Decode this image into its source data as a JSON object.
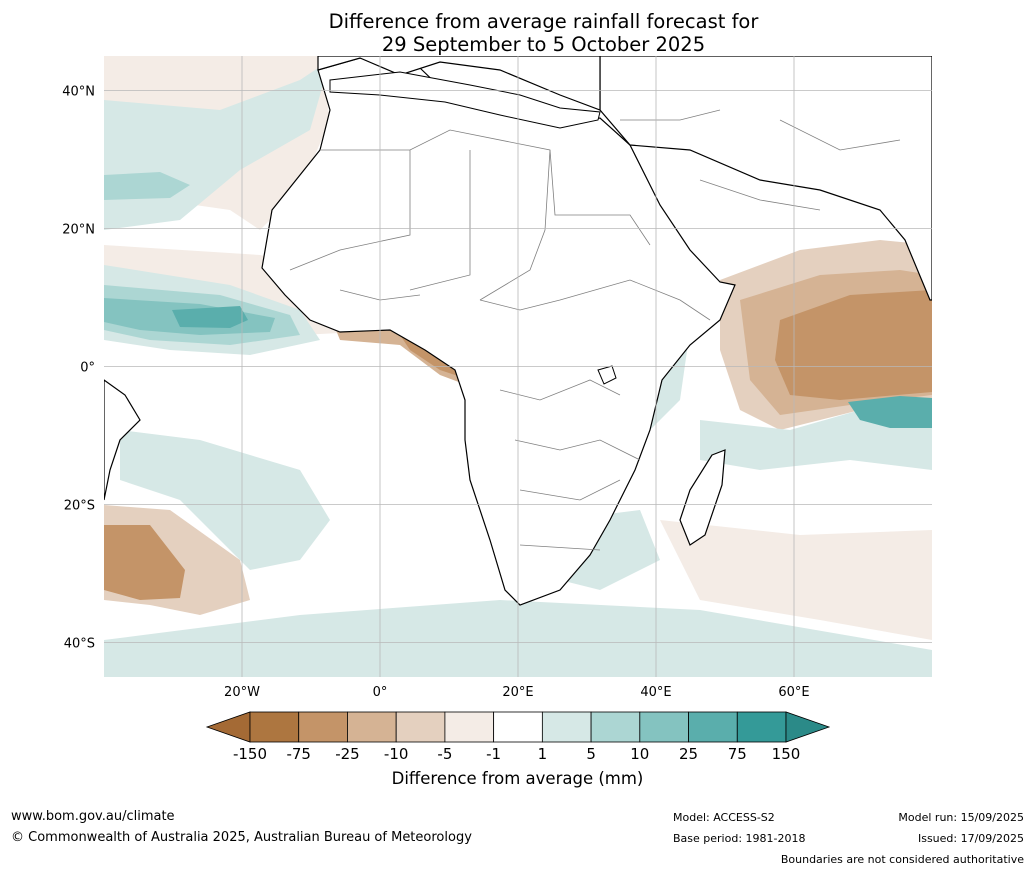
{
  "title_line1": "Difference from average rainfall forecast for",
  "title_line2": "29 September to 5 October 2025",
  "map": {
    "lon_range": [
      -40,
      80
    ],
    "lat_range": [
      -45,
      45
    ],
    "lon_ticks": [
      {
        "value": -20,
        "label": "20°W"
      },
      {
        "value": 0,
        "label": "0°"
      },
      {
        "value": 20,
        "label": "20°E"
      },
      {
        "value": 40,
        "label": "40°E"
      },
      {
        "value": 60,
        "label": "60°E"
      }
    ],
    "lat_ticks": [
      {
        "value": 40,
        "label": "40°N"
      },
      {
        "value": 20,
        "label": "20°N"
      },
      {
        "value": 0,
        "label": "0°"
      },
      {
        "value": -20,
        "label": "20°S"
      },
      {
        "value": -40,
        "label": "40°S"
      }
    ],
    "grid": true
  },
  "colorbar": {
    "title": "Difference from average (mm)",
    "tick_labels": [
      "-150",
      "-75",
      "-25",
      "-10",
      "-5",
      "-1",
      "1",
      "5",
      "10",
      "25",
      "75",
      "150"
    ],
    "colors": [
      "#a46a35",
      "#ad7640",
      "#c49468",
      "#d5b394",
      "#e4d0bf",
      "#f4ece6",
      "#ffffff",
      "#d6e8e6",
      "#acd6d3",
      "#84c3c0",
      "#5aaeac",
      "#349a98",
      "#2b8a88"
    ]
  },
  "footer": {
    "website": "www.bom.gov.au/climate",
    "copyright": "© Commonwealth of Australia 2025, Australian Bureau of Meteorology",
    "model": "Model: ACCESS-S2",
    "base_period": "Base period: 1981-2018",
    "model_run": "Model run: 15/09/2025",
    "issued": "Issued: 17/09/2025",
    "boundaries_note": "Boundaries are not considered authoritative"
  }
}
